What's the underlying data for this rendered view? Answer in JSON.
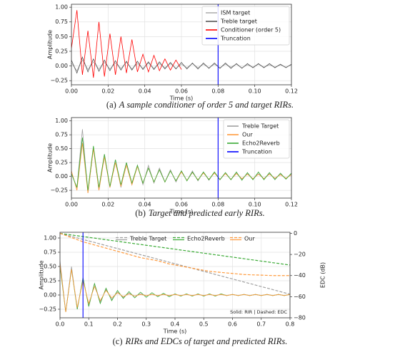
{
  "chart_data": [
    {
      "type": "line",
      "x_label": "Time (s)",
      "y_label": "Amplitude",
      "caption_label": "(a)",
      "caption": "A sample conditioner of order 5 and target RIRs.",
      "xlim": [
        0,
        0.12
      ],
      "ylim": [
        -0.32,
        1.05
      ],
      "grid": true,
      "legend": "upper right",
      "xticks": [
        {
          "value": 0,
          "label": "0.00"
        },
        {
          "value": 0.02,
          "label": "0.02"
        },
        {
          "value": 0.04,
          "label": "0.04"
        },
        {
          "value": 0.06,
          "label": "0.06"
        },
        {
          "value": 0.08,
          "label": "0.08"
        },
        {
          "value": 0.1,
          "label": "0.10"
        },
        {
          "value": 0.12,
          "label": "0.12"
        }
      ],
      "yticks": [
        {
          "value": -0.25,
          "label": "−0.25"
        },
        {
          "value": 0,
          "label": "0.00"
        },
        {
          "value": 0.25,
          "label": "0.25"
        },
        {
          "value": 0.5,
          "label": "0.50"
        },
        {
          "value": 0.75,
          "label": "0.75"
        },
        {
          "value": 1,
          "label": "1.00"
        }
      ],
      "x": [
        0,
        0.003,
        0.006,
        0.009,
        0.012,
        0.015,
        0.018,
        0.021,
        0.024,
        0.027,
        0.03,
        0.033,
        0.036,
        0.039,
        0.042,
        0.045,
        0.048,
        0.051,
        0.054,
        0.057,
        0.06,
        0.063,
        0.066,
        0.069,
        0.072,
        0.075,
        0.078,
        0.081,
        0.084,
        0.087,
        0.09,
        0.093,
        0.096,
        0.099,
        0.102,
        0.105,
        0.108,
        0.111,
        0.114,
        0.117,
        0.12
      ],
      "series": [
        {
          "name": "ISM target",
          "color": "#b0b0b0",
          "values": [
            0.05,
            -0.08,
            0.1,
            -0.06,
            0.07,
            -0.05,
            0.06,
            -0.05,
            0.05,
            -0.04,
            0.06,
            -0.05,
            0.04,
            -0.04,
            0.05,
            -0.04,
            0.04,
            -0.03,
            0.04,
            -0.04,
            0.03,
            -0.03,
            0.04,
            -0.03,
            0.03,
            -0.03,
            0.03,
            -0.03,
            0.03,
            -0.02,
            0.03,
            -0.03,
            0.02,
            -0.02,
            0.03,
            -0.02,
            0.02,
            -0.02,
            0.02,
            -0.02,
            0.02
          ]
        },
        {
          "name": "Treble target",
          "color": "#555555",
          "values": [
            0.1,
            -0.12,
            0.15,
            -0.1,
            0.12,
            -0.09,
            0.1,
            -0.08,
            0.09,
            -0.07,
            0.08,
            -0.07,
            0.08,
            -0.06,
            0.07,
            -0.06,
            0.07,
            -0.05,
            0.06,
            -0.05,
            0.06,
            -0.05,
            0.05,
            -0.05,
            0.05,
            -0.04,
            0.05,
            -0.04,
            0.05,
            -0.04,
            0.04,
            -0.04,
            0.04,
            -0.03,
            0.04,
            -0.03,
            0.04,
            -0.03,
            0.03,
            -0.03,
            0.03
          ]
        },
        {
          "name": "Conditioner (order 5)",
          "color": "#ff0000",
          "values": [
            0.3,
            0.95,
            -0.15,
            0.6,
            -0.2,
            0.75,
            -0.18,
            0.55,
            -0.15,
            0.5,
            -0.12,
            0.45,
            -0.1,
            0.2,
            -0.1,
            0.18,
            -0.08,
            0.12,
            -0.07,
            0.1,
            -0.06,
            null,
            null,
            null,
            null,
            null,
            null,
            null,
            null,
            null,
            null,
            null,
            null,
            null,
            null,
            null,
            null,
            null,
            null,
            null,
            null
          ]
        }
      ],
      "vlines": [
        {
          "name": "Truncation",
          "color": "#0000ff",
          "x": 0.08
        }
      ]
    },
    {
      "type": "line",
      "x_label": "Time (s)",
      "y_label": "Amplitude",
      "caption_label": "(b)",
      "caption": "Target and predicted early RIRs.",
      "xlim": [
        0,
        0.12
      ],
      "ylim": [
        -0.39,
        1.06
      ],
      "grid": true,
      "legend": "upper right",
      "xticks": [
        {
          "value": 0,
          "label": "0.00"
        },
        {
          "value": 0.02,
          "label": "0.02"
        },
        {
          "value": 0.04,
          "label": "0.04"
        },
        {
          "value": 0.06,
          "label": "0.06"
        },
        {
          "value": 0.08,
          "label": "0.08"
        },
        {
          "value": 0.1,
          "label": "0.10"
        },
        {
          "value": 0.12,
          "label": "0.12"
        }
      ],
      "yticks": [
        {
          "value": -0.25,
          "label": "−0.25"
        },
        {
          "value": 0,
          "label": "0.00"
        },
        {
          "value": 0.25,
          "label": "0.25"
        },
        {
          "value": 0.5,
          "label": "0.50"
        },
        {
          "value": 0.75,
          "label": "0.75"
        },
        {
          "value": 1,
          "label": "1.00"
        }
      ],
      "x": [
        0,
        0.003,
        0.006,
        0.009,
        0.012,
        0.015,
        0.018,
        0.021,
        0.024,
        0.027,
        0.03,
        0.033,
        0.036,
        0.039,
        0.042,
        0.045,
        0.048,
        0.051,
        0.054,
        0.057,
        0.06,
        0.063,
        0.066,
        0.069,
        0.072,
        0.075,
        0.078,
        0.081,
        0.084,
        0.087,
        0.09,
        0.093,
        0.096,
        0.099,
        0.102,
        0.105,
        0.108,
        0.111,
        0.114,
        0.117,
        0.12
      ],
      "series": [
        {
          "name": "Treble Target",
          "color": "#a0a0a0",
          "values": [
            0.05,
            -0.2,
            0.85,
            -0.3,
            0.5,
            -0.25,
            0.4,
            -0.2,
            0.3,
            -0.2,
            0.25,
            -0.15,
            0.2,
            -0.15,
            0.2,
            -0.12,
            0.15,
            -0.1,
            0.12,
            -0.1,
            0.1,
            -0.08,
            0.1,
            -0.08,
            0.08,
            -0.07,
            0.08,
            -0.06,
            0.06,
            -0.06,
            0.06,
            -0.05,
            0.05,
            -0.05,
            0.05,
            -0.04,
            0.05,
            -0.04,
            0.04,
            -0.04,
            0.04
          ]
        },
        {
          "name": "Our",
          "color": "#ff9a3c",
          "values": [
            0.1,
            -0.25,
            0.6,
            -0.3,
            0.5,
            -0.25,
            0.35,
            -0.2,
            0.25,
            -0.18,
            0.2,
            -0.15,
            0.18,
            -0.12,
            0.15,
            -0.1,
            0.12,
            -0.1,
            0.1,
            -0.08,
            0.08,
            -0.07,
            0.07,
            -0.06,
            0.06,
            -0.05,
            0.06,
            -0.05,
            0.05,
            -0.05,
            0.05,
            -0.04,
            0.04,
            -0.04,
            0.04,
            -0.04,
            0.04,
            -0.03,
            0.03,
            -0.03,
            0.03
          ]
        },
        {
          "name": "Echo2Reverb",
          "color": "#3aaa35",
          "values": [
            0.05,
            -0.2,
            0.7,
            -0.25,
            0.55,
            -0.2,
            0.4,
            -0.18,
            0.3,
            -0.15,
            0.25,
            -0.12,
            0.2,
            -0.12,
            0.15,
            -0.1,
            0.12,
            -0.1,
            0.1,
            -0.08,
            0.1,
            -0.08,
            0.08,
            -0.07,
            0.08,
            -0.06,
            0.08,
            -0.06,
            0.07,
            -0.06,
            0.08,
            -0.07,
            0.07,
            -0.06,
            0.08,
            -0.06,
            0.07,
            -0.06,
            0.06,
            -0.05,
            0.06
          ]
        }
      ],
      "vlines": [
        {
          "name": "Truncation",
          "color": "#0000ff",
          "x": 0.08
        }
      ]
    },
    {
      "type": "line",
      "x_label": "Time (s)",
      "y_label": "Amplitude",
      "y2_label": "EDC (dB)",
      "caption_label": "(c)",
      "caption": "RIRs and EDCs of target and predicted RIRs.",
      "annotation": "Solid: RIR  |  Dashed: EDC",
      "xlim": [
        0,
        0.8
      ],
      "ylim": [
        -0.4,
        1.1
      ],
      "y2lim": [
        -80,
        1
      ],
      "grid": true,
      "legend": "upper center",
      "legend_columns": 3,
      "xticks": [
        {
          "value": 0,
          "label": "0.0"
        },
        {
          "value": 0.1,
          "label": "0.1"
        },
        {
          "value": 0.2,
          "label": "0.2"
        },
        {
          "value": 0.3,
          "label": "0.3"
        },
        {
          "value": 0.4,
          "label": "0.4"
        },
        {
          "value": 0.5,
          "label": "0.5"
        },
        {
          "value": 0.6,
          "label": "0.6"
        },
        {
          "value": 0.7,
          "label": "0.7"
        },
        {
          "value": 0.8,
          "label": "0.8"
        }
      ],
      "yticks": [
        {
          "value": -0.25,
          "label": "−0.25"
        },
        {
          "value": 0,
          "label": "0.00"
        },
        {
          "value": 0.25,
          "label": "0.25"
        },
        {
          "value": 0.5,
          "label": "0.50"
        },
        {
          "value": 0.75,
          "label": "0.75"
        },
        {
          "value": 1,
          "label": "1.00"
        }
      ],
      "y2ticks": [
        {
          "value": -80,
          "label": "−80"
        },
        {
          "value": -60,
          "label": "−60"
        },
        {
          "value": -40,
          "label": "−40"
        },
        {
          "value": -20,
          "label": "−20"
        },
        0
      ],
      "x": [
        0,
        0.02,
        0.04,
        0.06,
        0.08,
        0.1,
        0.12,
        0.14,
        0.16,
        0.18,
        0.2,
        0.22,
        0.24,
        0.26,
        0.28,
        0.3,
        0.32,
        0.34,
        0.36,
        0.38,
        0.4,
        0.42,
        0.44,
        0.46,
        0.48,
        0.5,
        0.52,
        0.54,
        0.56,
        0.58,
        0.6,
        0.62,
        0.64,
        0.66,
        0.68,
        0.7,
        0.72,
        0.74,
        0.76,
        0.78,
        0.8
      ],
      "series": [
        {
          "name": "Treble Target",
          "color": "#a0a0a0",
          "values": [
            0.6,
            -0.3,
            0.5,
            -0.25,
            0.3,
            -0.2,
            0.2,
            -0.12,
            0.1,
            -0.08,
            0.05,
            -0.04,
            0.03,
            -0.02,
            0.02,
            -0.01,
            0.01,
            -0.01,
            0.01,
            -0.01,
            0.01,
            -0.01,
            0.01,
            -0.01,
            0.01,
            -0.01,
            0.01,
            -0.01,
            0.01,
            -0.01,
            0.01,
            -0.01,
            0.01,
            -0.01,
            0.01,
            -0.01,
            0.01,
            -0.01,
            0.01,
            -0.01,
            0.01
          ],
          "edc": [
            0,
            -1.4,
            -2.9,
            -4.3,
            -5.8,
            -7.2,
            -8.6,
            -10.1,
            -11.5,
            -13,
            -14.4,
            -15.8,
            -17.3,
            -18.7,
            -20.2,
            -21.6,
            -23,
            -24.5,
            -25.9,
            -27.4,
            -28.8,
            -30.2,
            -31.7,
            -33.1,
            -34.6,
            -36,
            -37.4,
            -38.9,
            -40.3,
            -41.8,
            -43.2,
            -44.6,
            -46.1,
            -47.5,
            -49,
            -50.4,
            -51.8,
            -53.3,
            -54.7,
            -56.2,
            -57.6
          ]
        },
        {
          "name": "Echo2Reverb",
          "color": "#3aaa35",
          "values": [
            0.5,
            -0.3,
            0.45,
            -0.25,
            0.3,
            -0.2,
            0.2,
            -0.15,
            0.12,
            -0.1,
            0.08,
            -0.06,
            0.06,
            -0.05,
            0.05,
            -0.04,
            0.04,
            -0.03,
            0.03,
            -0.03,
            0.02,
            -0.02,
            0.02,
            -0.02,
            0.02,
            -0.02,
            0.02,
            -0.02,
            0.02,
            -0.01,
            0.01,
            -0.01,
            0.01,
            -0.01,
            0.01,
            -0.01,
            0.01,
            -0.01,
            0.01,
            -0.01,
            0.01
          ],
          "edc": [
            0,
            -0.8,
            -1.5,
            -2.3,
            -3,
            -3.8,
            -4.5,
            -5.3,
            -6,
            -6.8,
            -7.5,
            -8.3,
            -9,
            -9.8,
            -10.5,
            -11.3,
            -12,
            -12.8,
            -13.5,
            -14.3,
            -15,
            -15.8,
            -16.5,
            -17.3,
            -18,
            -18.8,
            -19.5,
            -20.3,
            -21,
            -21.8,
            -22.5,
            -23.3,
            -24,
            -24.8,
            -25.5,
            -26.3,
            -27,
            -27.8,
            -28.5,
            -29.3,
            -30
          ]
        },
        {
          "name": "Our",
          "color": "#ff9a3c",
          "values": [
            0.55,
            -0.3,
            0.45,
            -0.22,
            0.25,
            -0.15,
            0.15,
            -0.1,
            0.08,
            -0.05,
            0.04,
            -0.03,
            0.02,
            -0.02,
            0.01,
            -0.01,
            0.01,
            -0.01,
            0.01,
            -0.01,
            0.01,
            -0.01,
            0.01,
            -0.01,
            0.01,
            -0.01,
            0.01,
            -0.01,
            0.01,
            -0.01,
            0.01,
            -0.01,
            0.01,
            -0.01,
            0.01,
            -0.01,
            0.01,
            -0.01,
            0.01,
            -0.01,
            0.01
          ],
          "edc": [
            0,
            -2,
            -4,
            -6,
            -8,
            -9.5,
            -11,
            -12.5,
            -14,
            -15.5,
            -17,
            -18.5,
            -20,
            -21.5,
            -23,
            -24,
            -25,
            -26,
            -27.5,
            -29,
            -30,
            -31,
            -32,
            -33,
            -34,
            -35,
            -36,
            -36.5,
            -37,
            -37.5,
            -38,
            -38.5,
            -39,
            -39.2,
            -39.4,
            -39.6,
            -39.8,
            -40,
            -40,
            -40,
            -40
          ]
        }
      ],
      "vlines": [
        {
          "color": "#0000ff",
          "x": 0.08
        }
      ]
    }
  ]
}
